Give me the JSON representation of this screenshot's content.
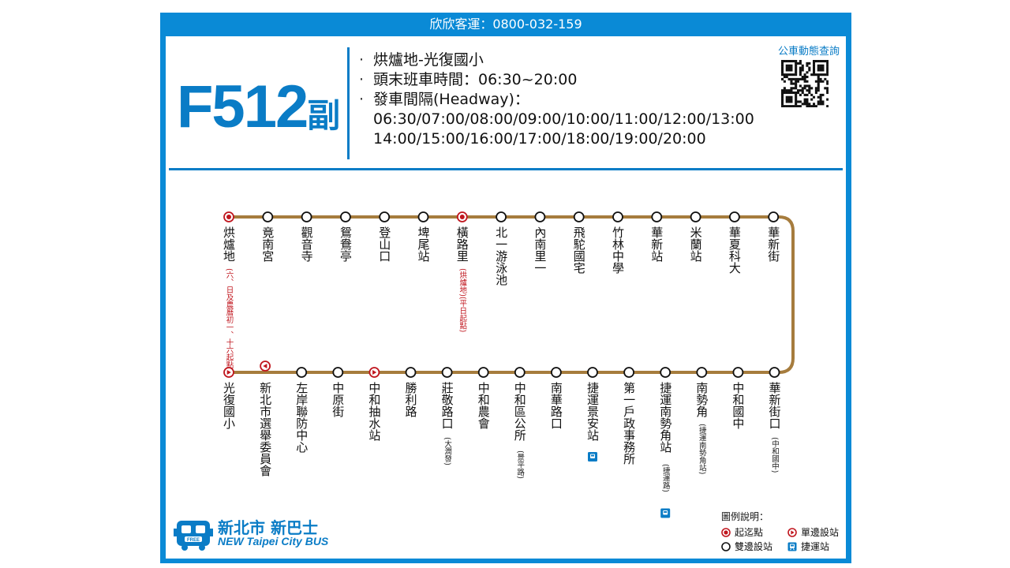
{
  "header": {
    "operator_line": "欣欣客運：0800-032-159",
    "route_number": "F512",
    "route_suffix": "副",
    "info_lines": [
      "烘爐地-光復國小",
      "頭末班車時間：06:30~20:00",
      "發車間隔(Headway)："
    ],
    "headway_lines": [
      "06:30/07:00/08:00/09:00/10:00/11:00/12:00/13:00",
      "14:00/15:00/16:00/17:00/18:00/19:00/20:00"
    ],
    "bullet": "·",
    "qr_label": "公車動態查詢"
  },
  "colors": {
    "frame_blue": "#0a8ad6",
    "route_line": "#a67c3d",
    "terminal_red": "#c0161e",
    "accent_blue": "#0a7cc6"
  },
  "route_map": {
    "top_row": [
      {
        "name": "烘爐地",
        "type": "terminal",
        "note": "(六、日及農曆初一、十六起點)"
      },
      {
        "name": "竟南宮",
        "type": "both"
      },
      {
        "name": "觀音寺",
        "type": "both"
      },
      {
        "name": "鴛鴦亭",
        "type": "both"
      },
      {
        "name": "登山口",
        "type": "both"
      },
      {
        "name": "埤尾站",
        "type": "both"
      },
      {
        "name": "橫路里",
        "type": "terminal",
        "note": "(烘爐地)(平日起點)"
      },
      {
        "name": "北一游泳池",
        "type": "both"
      },
      {
        "name": "內南里一",
        "type": "both"
      },
      {
        "name": "飛駝國宅",
        "type": "both"
      },
      {
        "name": "竹林中學",
        "type": "both"
      },
      {
        "name": "華新站",
        "type": "both"
      },
      {
        "name": "米蘭站",
        "type": "both"
      },
      {
        "name": "華夏科大",
        "type": "both"
      },
      {
        "name": "華新街",
        "type": "both"
      }
    ],
    "bottom_row": [
      {
        "name": "光復國小",
        "type": "oneway"
      },
      {
        "name": "新北市選舉委員會",
        "type": "oneway",
        "dir": "left"
      },
      {
        "name": "左岸聯防中心",
        "type": "both"
      },
      {
        "name": "中原街",
        "type": "both"
      },
      {
        "name": "中和抽水站",
        "type": "oneway"
      },
      {
        "name": "勝利路",
        "type": "both"
      },
      {
        "name": "莊敬路口",
        "type": "both",
        "note": "(大潤發)"
      },
      {
        "name": "中和農會",
        "type": "both"
      },
      {
        "name": "中和區公所",
        "type": "both",
        "note": "(景平路)"
      },
      {
        "name": "南華路口",
        "type": "both"
      },
      {
        "name": "捷運景安站",
        "type": "both",
        "mrt": true
      },
      {
        "name": "第一戶政事務所",
        "type": "both"
      },
      {
        "name": "捷運南勢角站",
        "type": "both",
        "note": "(捷運路)",
        "mrt": true
      },
      {
        "name": "南勢角",
        "type": "both",
        "note": "(捷運南勢角站)"
      },
      {
        "name": "中和國中",
        "type": "both"
      },
      {
        "name": "華新街口",
        "type": "both",
        "note": "(中和國中)"
      }
    ]
  },
  "logo": {
    "cn": "新北市 新巴士",
    "en": "NEW Taipei City BUS",
    "bus_text": "FREE"
  },
  "legend": {
    "title": "圖例說明：",
    "terminal": "起迄點",
    "oneway": "單邊設站",
    "both": "雙邊設站",
    "mrt": "捷運站"
  }
}
